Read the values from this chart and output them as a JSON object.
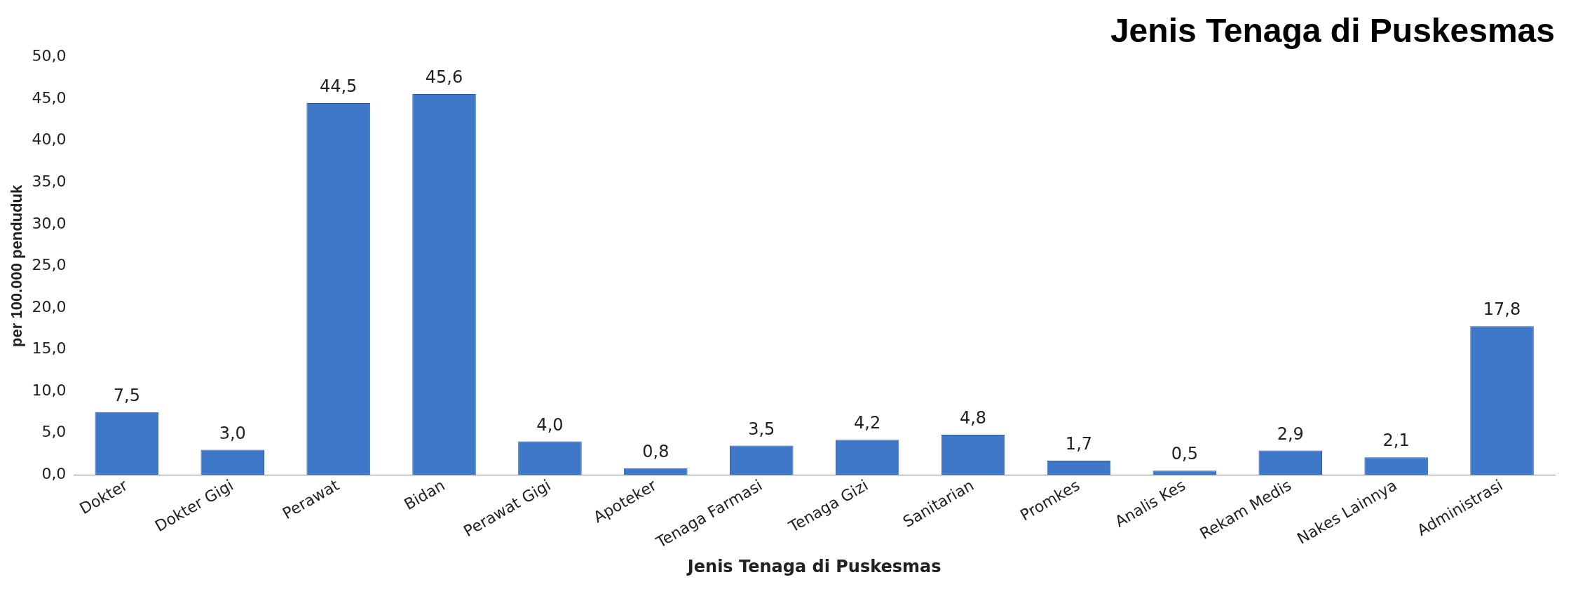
{
  "chart_data": {
    "type": "bar",
    "title": "Jenis Tenaga di Puskesmas",
    "categories": [
      "Dokter",
      "Dokter Gigi",
      "Perawat",
      "Bidan",
      "Perawat Gigi",
      "Apoteker",
      "Tenaga Farmasi",
      "Tenaga Gizi",
      "Sanitarian",
      "Promkes",
      "Analis Kes",
      "Rekam Medis",
      "Nakes Lainnya",
      "Administrasi"
    ],
    "values": [
      7.5,
      3.0,
      44.5,
      45.6,
      4.0,
      0.8,
      3.5,
      4.2,
      4.8,
      1.7,
      0.5,
      2.9,
      2.1,
      17.8
    ],
    "value_labels": [
      "7,5",
      "3,0",
      "44,5",
      "45,6",
      "4,0",
      "0,8",
      "3,5",
      "4,2",
      "4,8",
      "1,7",
      "0,5",
      "2,9",
      "2,1",
      "17,8"
    ],
    "color": "#3f78c8",
    "xlabel": "Jenis Tenaga di Puskesmas",
    "ylabel": "per 100.000 penduduk",
    "ylim": [
      0,
      50
    ],
    "yticks": [
      {
        "value": 0,
        "label": "0,0"
      },
      {
        "value": 5,
        "label": "5,0"
      },
      {
        "value": 10,
        "label": "10,0"
      },
      {
        "value": 15,
        "label": "15,0"
      },
      {
        "value": 20,
        "label": "20,0"
      },
      {
        "value": 25,
        "label": "25,0"
      },
      {
        "value": 30,
        "label": "30,0"
      },
      {
        "value": 35,
        "label": "35,0"
      },
      {
        "value": 40,
        "label": "40,0"
      },
      {
        "value": 45,
        "label": "45,0"
      },
      {
        "value": 50,
        "label": "50,0"
      }
    ],
    "grid": false,
    "legend": false
  }
}
